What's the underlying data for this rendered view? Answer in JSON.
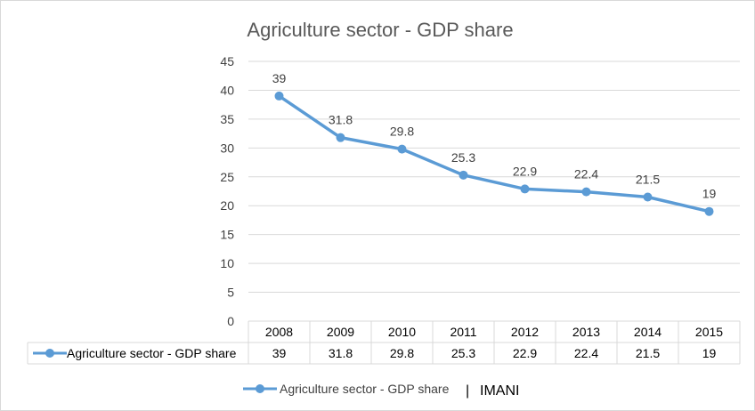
{
  "chart_data": {
    "type": "line",
    "title": "Agriculture sector - GDP share",
    "categories": [
      "2008",
      "2009",
      "2010",
      "2011",
      "2012",
      "2013",
      "2014",
      "2015"
    ],
    "series": [
      {
        "name": "Agriculture sector - GDP share",
        "values": [
          39,
          31.8,
          29.8,
          25.3,
          22.9,
          22.4,
          21.5,
          19
        ],
        "value_labels": [
          "39",
          "31.8",
          "29.8",
          "25.3",
          "22.9",
          "22.4",
          "21.5",
          "19"
        ],
        "color": "#5b9bd5"
      }
    ],
    "ylim": [
      0,
      45
    ],
    "yticks": [
      "0",
      "5",
      "10",
      "15",
      "20",
      "25",
      "30",
      "35",
      "40",
      "45"
    ],
    "grid": true,
    "data_table": true,
    "legend": "bottom"
  },
  "legend": {
    "label": "Agriculture sector - GDP share",
    "separator": "|",
    "source": "IMANI"
  },
  "colors": {
    "series": "#5b9bd5",
    "grid": "#d9d9d9",
    "text": "#404040",
    "title": "#595959"
  }
}
